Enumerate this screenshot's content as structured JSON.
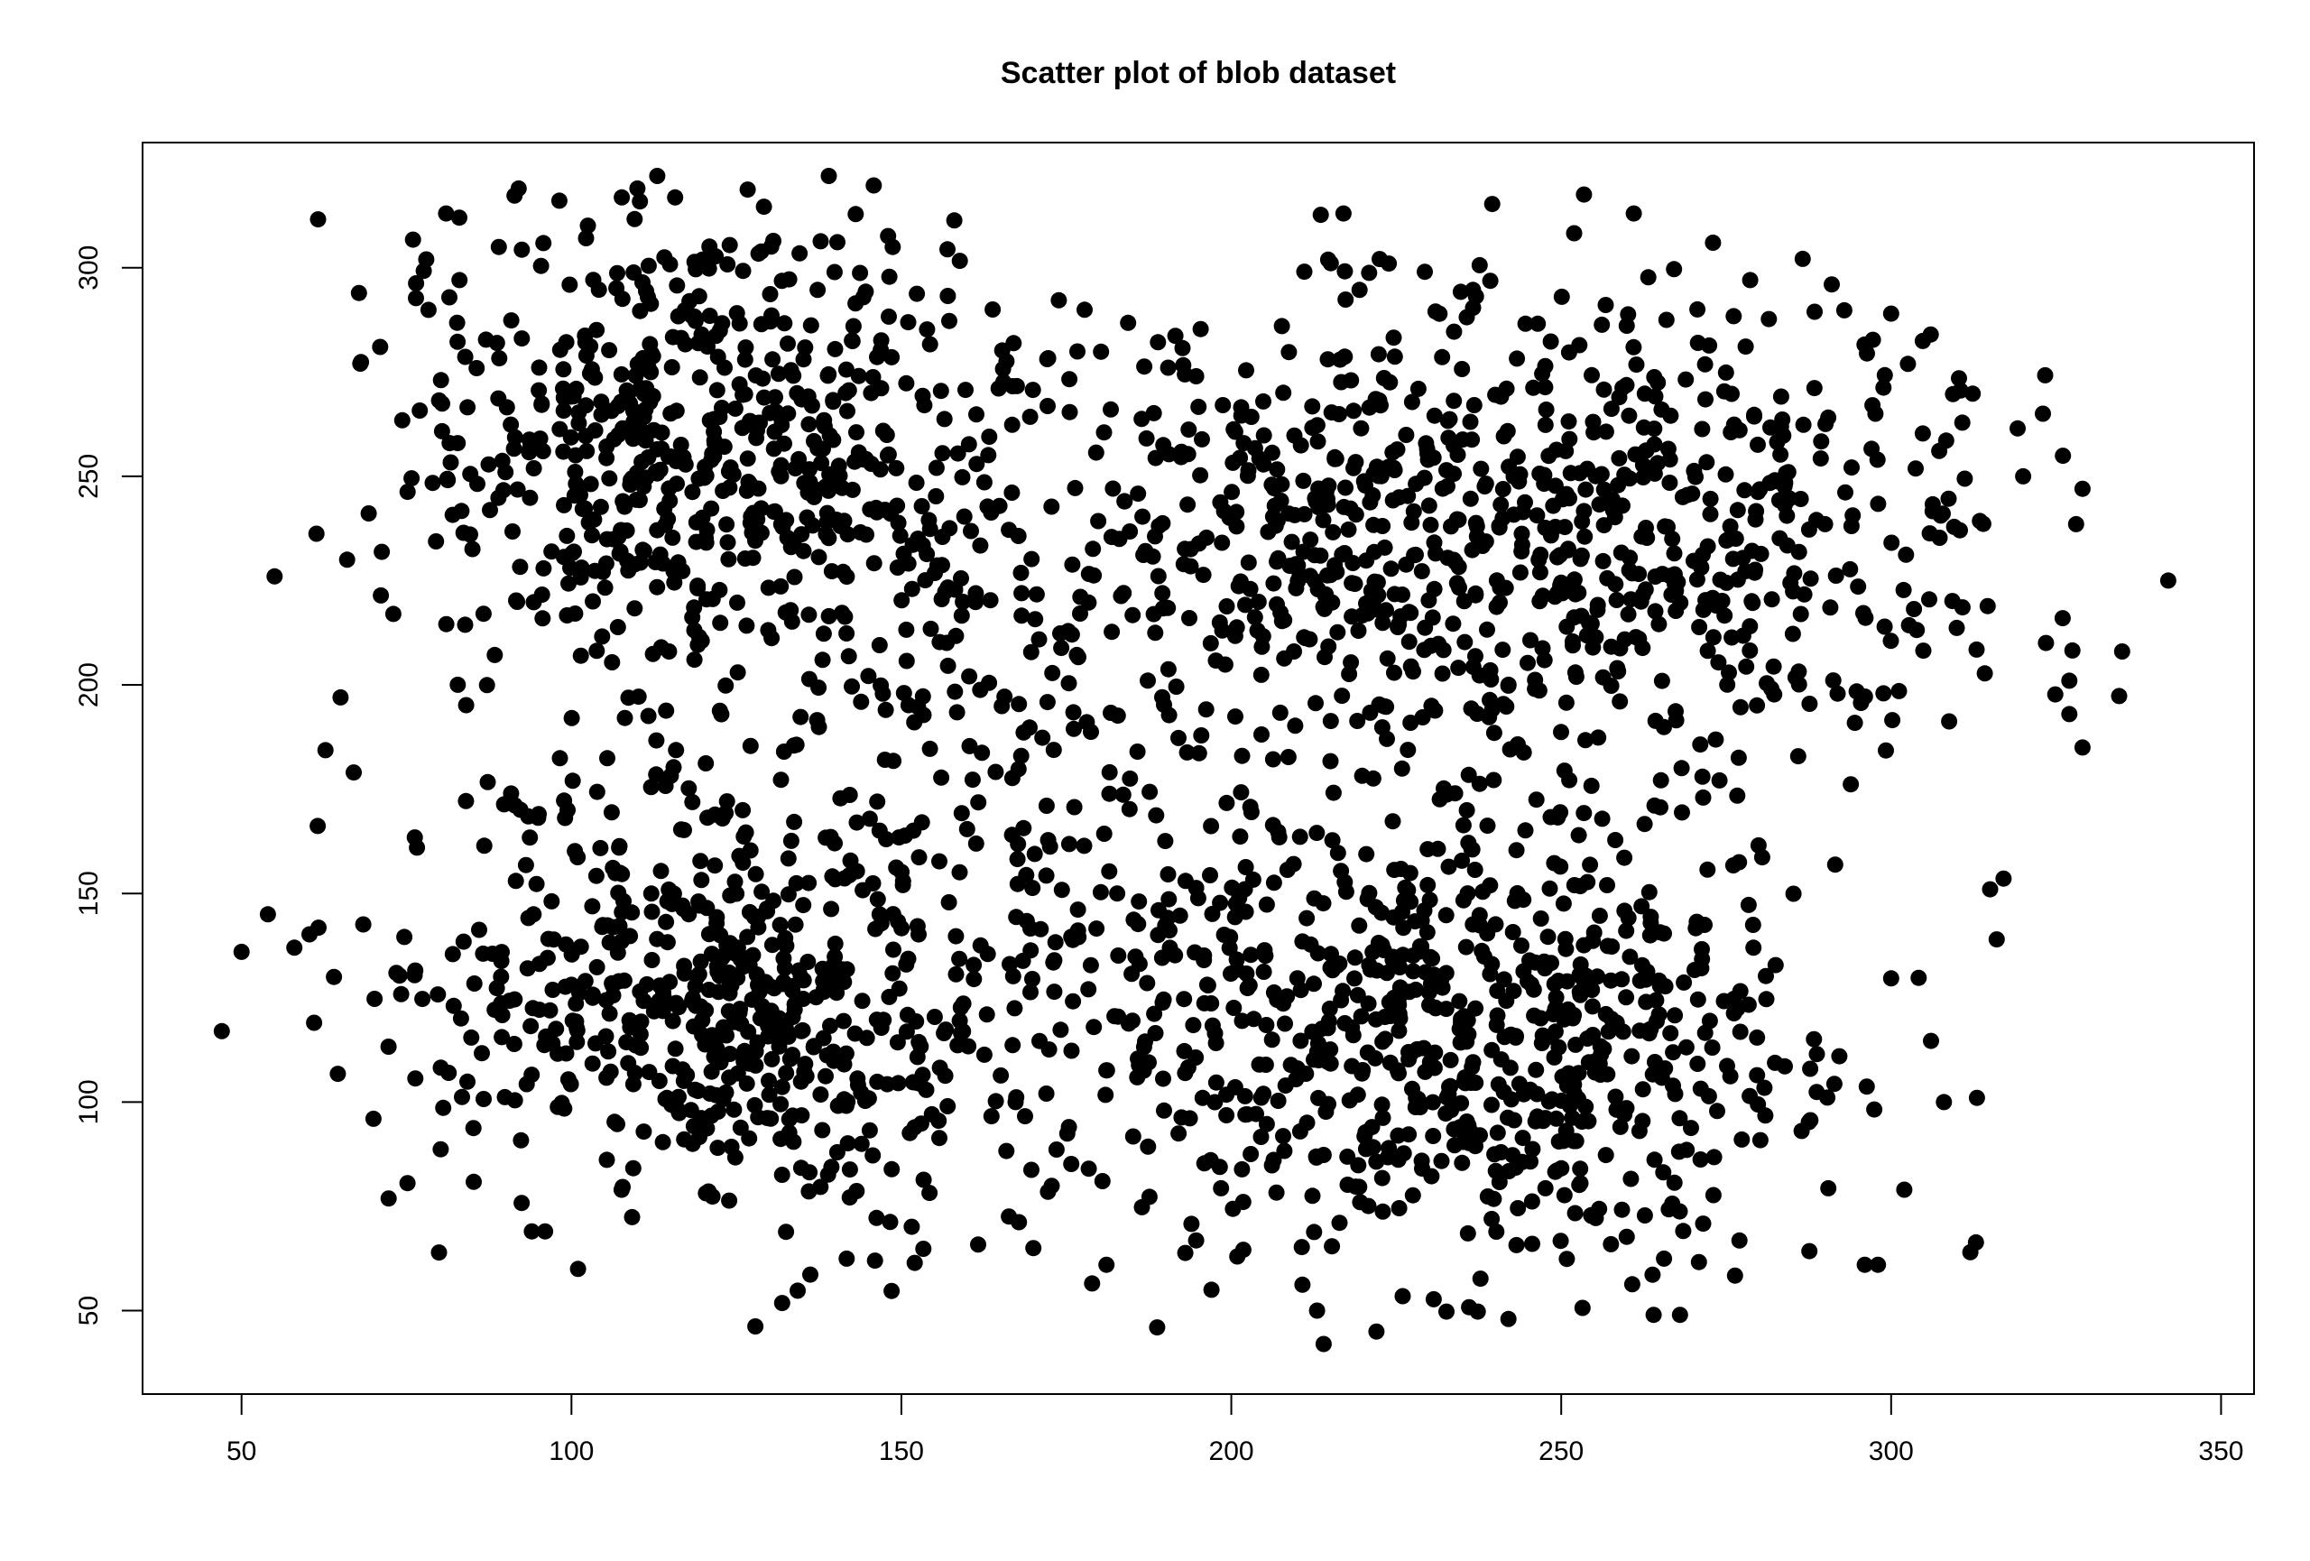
{
  "chart_data": {
    "type": "scatter",
    "title": "Scatter plot of blob dataset",
    "xlabel": "",
    "ylabel": "",
    "xlim": [
      35,
      355
    ],
    "ylim": [
      30,
      330
    ],
    "x_ticks": [
      50,
      100,
      150,
      200,
      250,
      300,
      350
    ],
    "y_ticks": [
      50,
      100,
      150,
      200,
      250,
      300
    ],
    "grid": false,
    "legend": "none",
    "point_color": "#000000",
    "blobs": [
      {
        "center": [
          120,
          255
        ],
        "spread": [
          24,
          30
        ],
        "count": 620
      },
      {
        "center": [
          125,
          125
        ],
        "spread": [
          26,
          28
        ],
        "count": 620
      },
      {
        "center": [
          258,
          235
        ],
        "spread": [
          28,
          30
        ],
        "count": 620
      },
      {
        "center": [
          240,
          115
        ],
        "spread": [
          26,
          28
        ],
        "count": 620
      },
      {
        "center": [
          170,
          215
        ],
        "spread": [
          20,
          40
        ],
        "count": 180
      },
      {
        "center": [
          195,
          130
        ],
        "spread": [
          18,
          30
        ],
        "count": 160
      },
      {
        "center": [
          210,
          240
        ],
        "spread": [
          16,
          25
        ],
        "count": 180
      }
    ],
    "points": [
      {
        "x": 47,
        "y": 117
      },
      {
        "x": 50,
        "y": 136
      },
      {
        "x": 54,
        "y": 145
      },
      {
        "x": 55,
        "y": 226
      },
      {
        "x": 58,
        "y": 137
      },
      {
        "x": 61,
        "y": 119
      },
      {
        "x": 64,
        "y": 130
      },
      {
        "x": 65,
        "y": 197
      },
      {
        "x": 66,
        "y": 230
      },
      {
        "x": 67,
        "y": 179
      },
      {
        "x": 68,
        "y": 277
      },
      {
        "x": 70,
        "y": 96
      },
      {
        "x": 71,
        "y": 281
      },
      {
        "x": 73,
        "y": 217
      },
      {
        "x": 78,
        "y": 302
      },
      {
        "x": 81,
        "y": 313
      },
      {
        "x": 83,
        "y": 312
      },
      {
        "x": 92,
        "y": 319
      },
      {
        "x": 110,
        "y": 319
      },
      {
        "x": 113,
        "y": 322
      },
      {
        "x": 139,
        "y": 322
      },
      {
        "x": 101,
        "y": 60
      },
      {
        "x": 94,
        "y": 69
      },
      {
        "x": 96,
        "y": 69
      },
      {
        "x": 146,
        "y": 62
      },
      {
        "x": 170,
        "y": 65
      },
      {
        "x": 197,
        "y": 55
      },
      {
        "x": 213,
        "y": 50
      },
      {
        "x": 214,
        "y": 42
      },
      {
        "x": 222,
        "y": 45
      },
      {
        "x": 242,
        "y": 48
      },
      {
        "x": 264,
        "y": 49
      },
      {
        "x": 268,
        "y": 49
      },
      {
        "x": 296,
        "y": 61
      },
      {
        "x": 298,
        "y": 61
      },
      {
        "x": 302,
        "y": 79
      },
      {
        "x": 312,
        "y": 64
      },
      {
        "x": 313,
        "y": 101
      },
      {
        "x": 308,
        "y": 100
      },
      {
        "x": 315,
        "y": 151
      },
      {
        "x": 316,
        "y": 139
      },
      {
        "x": 320,
        "y": 250
      },
      {
        "x": 323,
        "y": 265
      },
      {
        "x": 326,
        "y": 216
      },
      {
        "x": 327,
        "y": 201
      },
      {
        "x": 327,
        "y": 193
      },
      {
        "x": 329,
        "y": 185
      },
      {
        "x": 329,
        "y": 247
      },
      {
        "x": 335,
        "y": 208
      },
      {
        "x": 342,
        "y": 225
      },
      {
        "x": 217,
        "y": 313
      },
      {
        "x": 261,
        "y": 313
      },
      {
        "x": 273,
        "y": 306
      },
      {
        "x": 291,
        "y": 296
      },
      {
        "x": 300,
        "y": 289
      },
      {
        "x": 306,
        "y": 284
      }
    ]
  }
}
